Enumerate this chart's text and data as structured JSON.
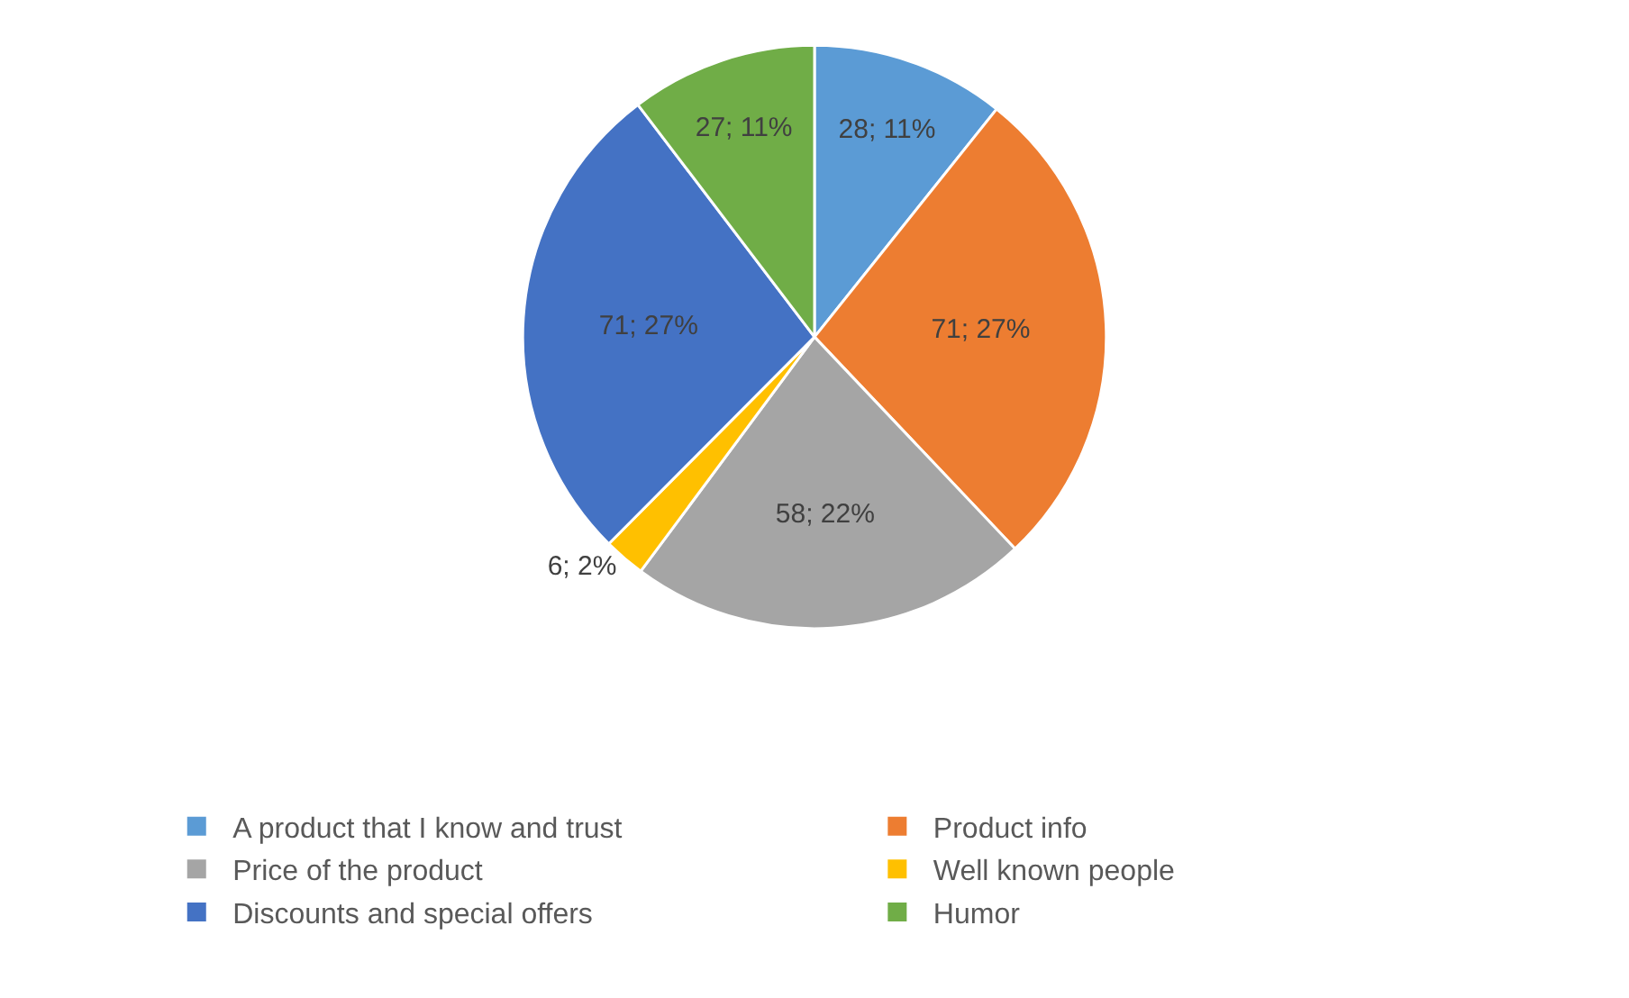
{
  "chart_data": {
    "type": "pie",
    "categories": [
      "A product that I know and trust",
      "Product info",
      "Price of the product",
      "Well known people",
      "Discounts and special offers",
      "Humor"
    ],
    "values": [
      28,
      71,
      58,
      6,
      71,
      27
    ],
    "value_labels": [
      "28; 11%",
      "71; 27%",
      "58; 22%",
      "6; 2%",
      "71; 27%",
      "27; 11%"
    ],
    "colors": [
      "#5b9bd5",
      "#ed7d31",
      "#a5a5a5",
      "#ffc000",
      "#4472c4",
      "#70ad47"
    ],
    "legend": "bottom"
  }
}
